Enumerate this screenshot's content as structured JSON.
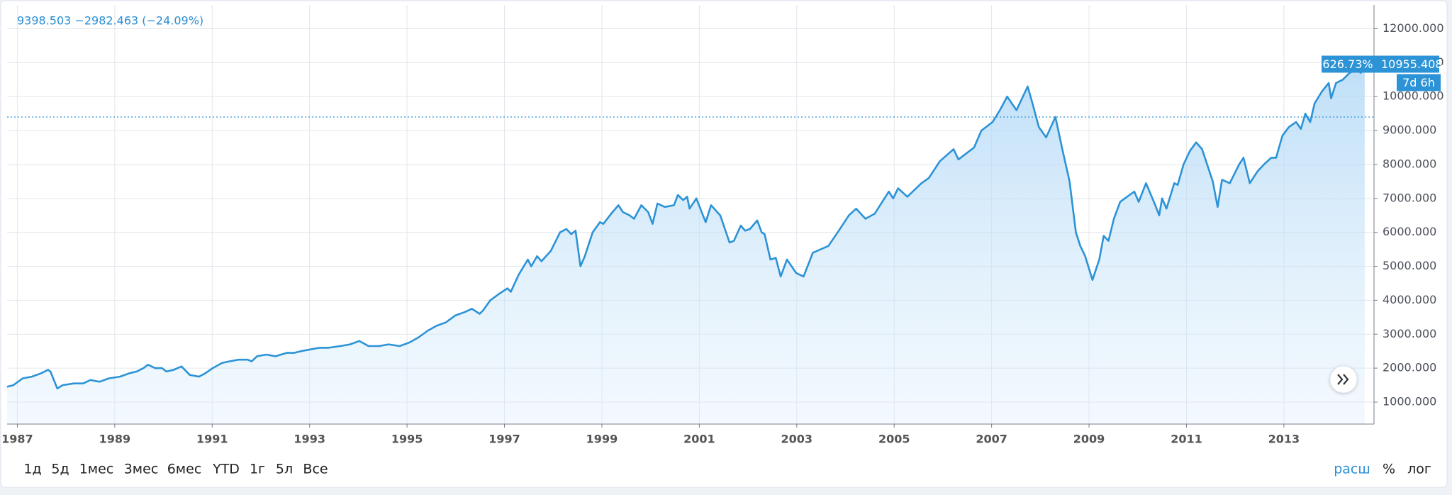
{
  "chart_data": {
    "type": "area",
    "header_label": "9398.503 −2982.463 (−24.09%)",
    "reference_line": 9398.503,
    "price_tag": {
      "value": 10955.408,
      "label": "10955.408"
    },
    "percent_tag": "626.73%",
    "countdown": "7d 6h",
    "xlim": [
      1986.79,
      2014.85
    ],
    "ylim": [
      352,
      12700
    ],
    "xticks": [
      1987,
      1989,
      1991,
      1993,
      1995,
      1997,
      1999,
      2001,
      2003,
      2005,
      2007,
      2009,
      2011,
      2013
    ],
    "yticks": [
      {
        "value": 1000,
        "label": "1000.000"
      },
      {
        "value": 2000,
        "label": "2000.000"
      },
      {
        "value": 3000,
        "label": "3000.000"
      },
      {
        "value": 4000,
        "label": "4000.000"
      },
      {
        "value": 5000,
        "label": "5000.000"
      },
      {
        "value": 6000,
        "label": "6000.000"
      },
      {
        "value": 7000,
        "label": "7000.000"
      },
      {
        "value": 8000,
        "label": "8000.000"
      },
      {
        "value": 9000,
        "label": "9000.000"
      },
      {
        "value": 10000,
        "label": "10000.000"
      },
      {
        "value": 11000,
        "label": "11000.000"
      },
      {
        "value": 12000,
        "label": "12000.000"
      }
    ],
    "grid": true,
    "x": [
      1986.79,
      1986.92,
      1987.11,
      1987.3,
      1987.49,
      1987.63,
      1987.68,
      1987.82,
      1987.93,
      1988.16,
      1988.35,
      1988.5,
      1988.69,
      1988.88,
      1989.11,
      1989.3,
      1989.45,
      1989.59,
      1989.68,
      1989.83,
      1989.97,
      1990.06,
      1990.21,
      1990.37,
      1990.54,
      1990.73,
      1990.86,
      1991.01,
      1991.2,
      1991.35,
      1991.54,
      1991.73,
      1991.81,
      1991.92,
      1992.11,
      1992.3,
      1992.53,
      1992.68,
      1992.82,
      1993.01,
      1993.2,
      1993.39,
      1993.63,
      1993.83,
      1994.02,
      1994.21,
      1994.43,
      1994.62,
      1994.85,
      1995.04,
      1995.23,
      1995.42,
      1995.61,
      1995.8,
      1995.99,
      1996.18,
      1996.33,
      1996.49,
      1996.56,
      1996.71,
      1996.9,
      1997.06,
      1997.13,
      1997.29,
      1997.48,
      1997.55,
      1997.67,
      1997.76,
      1997.95,
      1998.14,
      1998.27,
      1998.37,
      1998.46,
      1998.56,
      1998.65,
      1998.81,
      1998.96,
      1999.03,
      1999.19,
      1999.34,
      1999.43,
      1999.57,
      1999.66,
      1999.81,
      1999.95,
      2000.04,
      2000.14,
      2000.29,
      2000.48,
      2000.56,
      2000.67,
      2000.75,
      2000.8,
      2000.94,
      2001.13,
      2001.24,
      2001.43,
      2001.62,
      2001.71,
      2001.85,
      2001.94,
      2002.04,
      2002.19,
      2002.28,
      2002.34,
      2002.46,
      2002.57,
      2002.67,
      2002.8,
      2002.99,
      2003.14,
      2003.33,
      2003.65,
      2003.84,
      2004.07,
      2004.22,
      2004.41,
      2004.6,
      2004.89,
      2004.98,
      2005.08,
      2005.27,
      2005.56,
      2005.71,
      2005.94,
      2006.22,
      2006.32,
      2006.64,
      2006.79,
      2007.02,
      2007.17,
      2007.32,
      2007.51,
      2007.74,
      2007.84,
      2007.97,
      2008.12,
      2008.31,
      2008.46,
      2008.6,
      2008.73,
      2008.82,
      2008.92,
      2009.07,
      2009.21,
      2009.3,
      2009.4,
      2009.51,
      2009.64,
      2009.83,
      2009.93,
      2010.02,
      2010.17,
      2010.36,
      2010.44,
      2010.5,
      2010.59,
      2010.75,
      2010.82,
      2010.94,
      2011.07,
      2011.2,
      2011.32,
      2011.54,
      2011.64,
      2011.73,
      2011.89,
      2012.08,
      2012.17,
      2012.3,
      2012.46,
      2012.59,
      2012.74,
      2012.84,
      2012.97,
      2013.1,
      2013.25,
      2013.35,
      2013.44,
      2013.54,
      2013.63,
      2013.78,
      2013.92,
      2013.97,
      2014.07,
      2014.21,
      2014.35,
      2014.49,
      2014.58,
      2014.66
    ],
    "series": [
      {
        "color": "#2c93d6",
        "values": [
          1450,
          1500,
          1700,
          1750,
          1850,
          1950,
          1900,
          1400,
          1500,
          1550,
          1550,
          1650,
          1600,
          1700,
          1750,
          1850,
          1900,
          2000,
          2100,
          2000,
          2000,
          1900,
          1950,
          2050,
          1800,
          1750,
          1850,
          2000,
          2150,
          2200,
          2250,
          2250,
          2200,
          2350,
          2400,
          2350,
          2450,
          2450,
          2500,
          2550,
          2600,
          2600,
          2650,
          2700,
          2800,
          2650,
          2650,
          2700,
          2650,
          2750,
          2900,
          3100,
          3250,
          3350,
          3550,
          3650,
          3750,
          3600,
          3700,
          4000,
          4200,
          4350,
          4250,
          4750,
          5200,
          5000,
          5300,
          5150,
          5450,
          6000,
          6100,
          5950,
          6050,
          5000,
          5300,
          6000,
          6300,
          6250,
          6550,
          6800,
          6600,
          6500,
          6400,
          6800,
          6600,
          6250,
          6850,
          6750,
          6800,
          7100,
          6950,
          7050,
          6700,
          7000,
          6300,
          6800,
          6500,
          5700,
          5750,
          6200,
          6050,
          6100,
          6350,
          6000,
          5950,
          5200,
          5250,
          4700,
          5200,
          4800,
          4700,
          5400,
          5600,
          6000,
          6500,
          6700,
          6400,
          6550,
          7200,
          7000,
          7300,
          7050,
          7450,
          7600,
          8100,
          8450,
          8150,
          8500,
          9000,
          9250,
          9600,
          10000,
          9600,
          10300,
          9800,
          9100,
          8800,
          9400,
          8400,
          7500,
          6000,
          5600,
          5300,
          4600,
          5200,
          5900,
          5750,
          6400,
          6900,
          7100,
          7200,
          6900,
          7450,
          6800,
          6500,
          7000,
          6700,
          7450,
          7400,
          8000,
          8400,
          8650,
          8450,
          7500,
          6750,
          7550,
          7450,
          8000,
          8200,
          7450,
          7800,
          8000,
          8200,
          8200,
          8850,
          9100,
          9250,
          9050,
          9500,
          9250,
          9800,
          10150,
          10400,
          9950,
          10400,
          10500,
          10700,
          10800,
          10700,
          10955.408
        ]
      }
    ]
  },
  "toolbar": {
    "ranges": [
      "1д",
      "5д",
      "1мес",
      "3мес",
      "6мес",
      "YTD",
      "1г",
      "5л",
      "Все"
    ],
    "options": [
      "расш",
      "%",
      "лог"
    ]
  }
}
